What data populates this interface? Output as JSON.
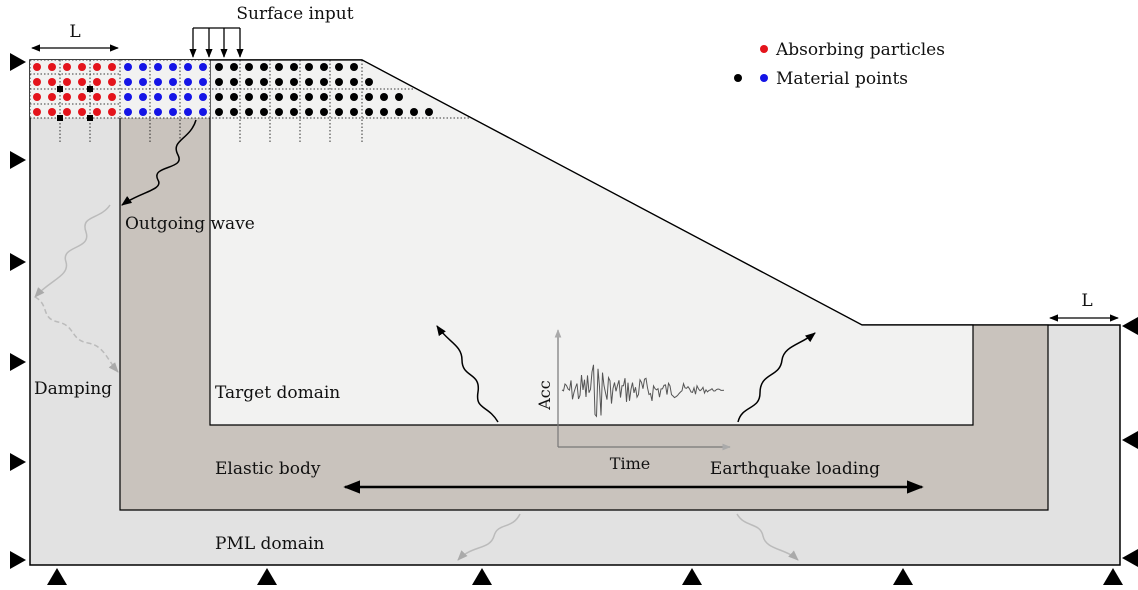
{
  "labels": {
    "surface_input": "Surface input",
    "width_top": "L",
    "width_right": "L",
    "outgoing_wave": "Outgoing wave",
    "damping": "Damping",
    "target_domain": "Target domain",
    "elastic_body": "Elastic body",
    "pml_domain": "PML domain",
    "earthquake_loading": "Earthquake loading",
    "acc_axis": "Acc",
    "time_axis": "Time"
  },
  "legend": {
    "absorbing": "Absorbing particles",
    "material": "Material points"
  },
  "colors": {
    "pml": "#e2e2e2",
    "elastic": "#c9c3bd",
    "target": "#f2f2f1",
    "absorbing": "#e4141c",
    "material_blue": "#1414e6",
    "material_black": "#000000",
    "fade_arrow": "#bbbbbb",
    "signal": "#555555"
  },
  "icons": {
    "support_left": "triangle-right-support",
    "support_right": "triangle-left-support",
    "support_bottom": "triangle-up-support"
  }
}
